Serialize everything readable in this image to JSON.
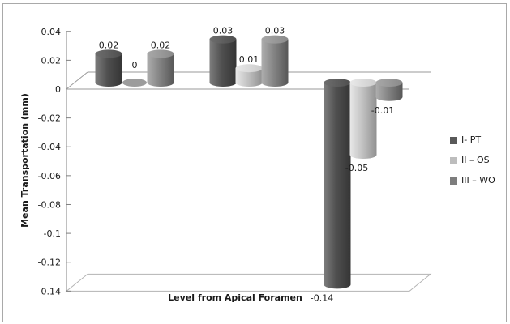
{
  "chart_data": {
    "type": "bar",
    "subtype": "3d-cylinder",
    "title": "",
    "xlabel": "Level from Apical Foramen",
    "ylabel": "Mean Transportation (mm)",
    "categories": [
      "",
      "",
      ""
    ],
    "series": [
      {
        "name": "I- PT",
        "color": "#595959",
        "body_gradient": [
          "#7d7d7d",
          "#505050",
          "#353535"
        ],
        "cap_gradient": [
          "#6e6e6e",
          "#4e4e4e"
        ],
        "values": [
          0.02,
          0.03,
          -0.14
        ],
        "labels": [
          "0.02",
          "0.03",
          "-0.14"
        ]
      },
      {
        "name": "II – OS",
        "color": "#bdbdbd",
        "body_gradient": [
          "#e8e8e8",
          "#c3c3c3",
          "#909090"
        ],
        "cap_gradient": [
          "#e9e9e9",
          "#cccccc"
        ],
        "values": [
          0,
          0.01,
          -0.05
        ],
        "labels": [
          "0",
          "0.01",
          "-0.05"
        ]
      },
      {
        "name": "III – WO",
        "color": "#7d7d7d",
        "body_gradient": [
          "#aeaeae",
          "#858585",
          "#575757"
        ],
        "cap_gradient": [
          "#a8a8a8",
          "#8a8a8a"
        ],
        "values": [
          0.02,
          0.03,
          -0.01
        ],
        "labels": [
          "0.02",
          "0.03",
          "-0.01"
        ]
      }
    ],
    "y_ticks": [
      "0.04",
      "0.02",
      "0",
      "-0.02",
      "-0.04",
      "-0.06",
      "-0.08",
      "-0.1",
      "-0.12",
      "-0.14"
    ],
    "ylim": [
      -0.14,
      0.04
    ],
    "grid": "zero-line-only",
    "legend_position": "right",
    "data_labels_shown": true
  },
  "colors": {
    "frame_border": "#a9a9a9",
    "axis_line": "#808080",
    "zero_line": "#9a9a9a",
    "floor_stroke": "#b3b3b3",
    "zero_ellipse": "#9c9c9c",
    "text": "#1a1a1a",
    "background": "#ffffff"
  }
}
